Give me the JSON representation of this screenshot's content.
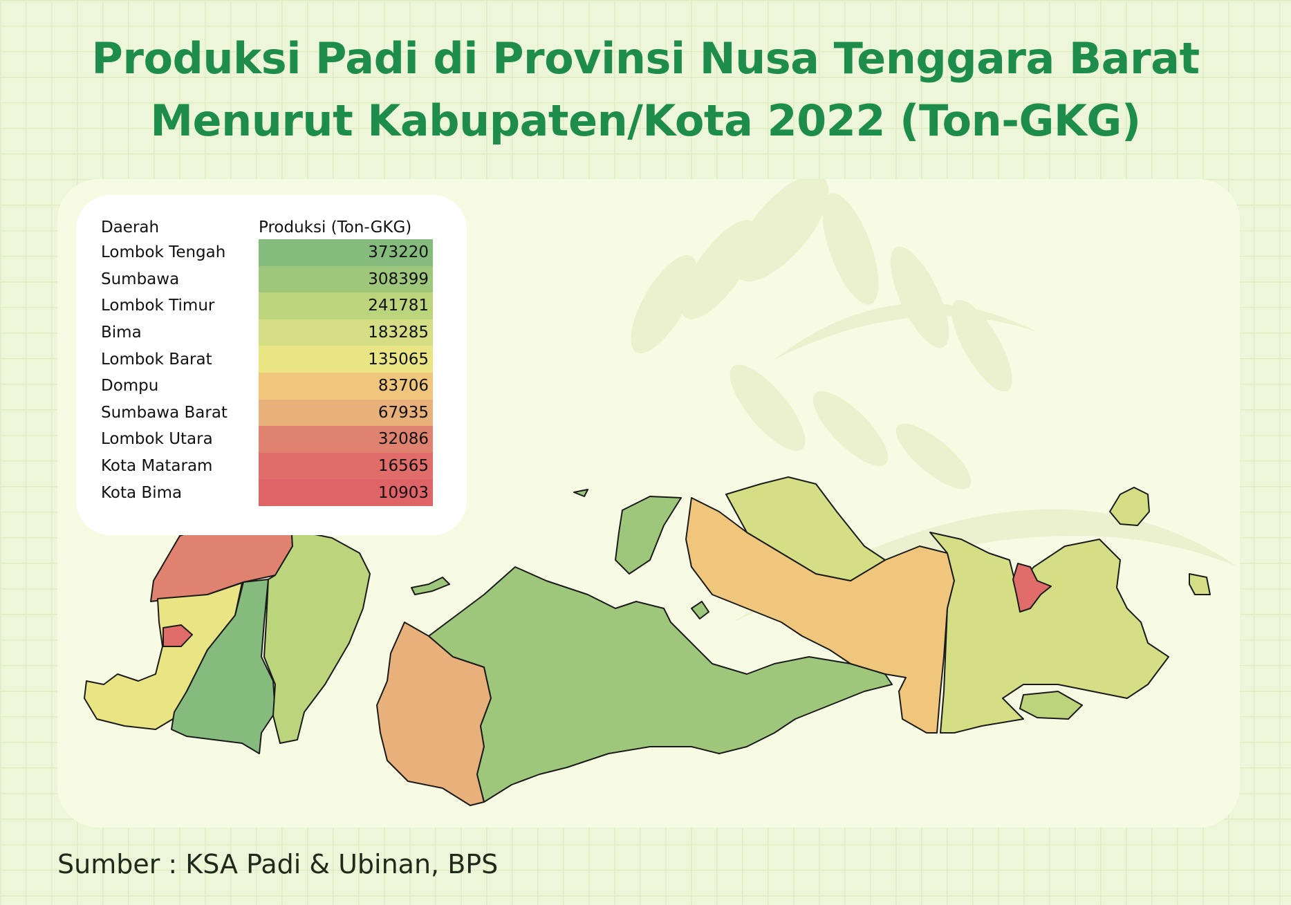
{
  "title": {
    "line1": "Produksi Padi di Provinsi Nusa Tenggara Barat",
    "line2": "Menurut Kabupaten/Kota 2022 (Ton-GKG)"
  },
  "legend": {
    "col_region": "Daerah",
    "col_value": "Produksi (Ton-GKG)",
    "rows": [
      {
        "name": "Lombok Tengah",
        "value": "373220",
        "color": "#86bb7e"
      },
      {
        "name": "Sumbawa",
        "value": "308399",
        "color": "#9fc77c"
      },
      {
        "name": "Lombok Timur",
        "value": "241781",
        "color": "#bcd47c"
      },
      {
        "name": "Bima",
        "value": "183285",
        "color": "#d4de84"
      },
      {
        "name": "Lombok Barat",
        "value": "135065",
        "color": "#e9e484"
      },
      {
        "name": "Dompu",
        "value": "83706",
        "color": "#efc67c"
      },
      {
        "name": "Sumbawa Barat",
        "value": "67935",
        "color": "#e8b07a"
      },
      {
        "name": "Lombok Utara",
        "value": "32086",
        "color": "#df8370"
      },
      {
        "name": "Kota Mataram",
        "value": "16565",
        "color": "#e06d6a"
      },
      {
        "name": "Kota Bima",
        "value": "10903",
        "color": "#df6468"
      }
    ]
  },
  "source": "Sumber : KSA Padi & Ubinan, BPS"
}
